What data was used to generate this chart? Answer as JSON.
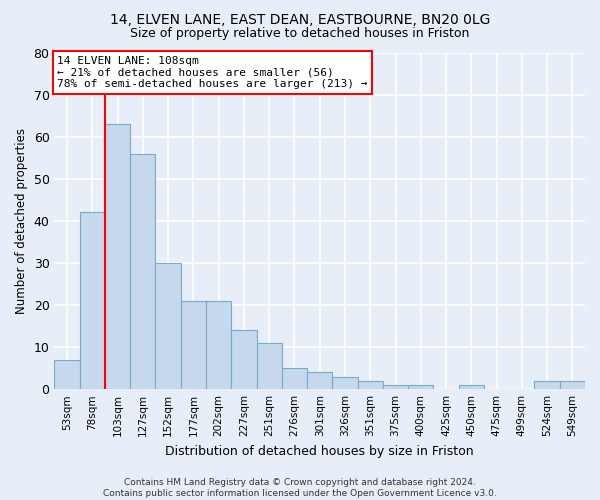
{
  "title_line1": "14, ELVEN LANE, EAST DEAN, EASTBOURNE, BN20 0LG",
  "title_line2": "Size of property relative to detached houses in Friston",
  "xlabel": "Distribution of detached houses by size in Friston",
  "ylabel": "Number of detached properties",
  "categories": [
    "53sqm",
    "78sqm",
    "103sqm",
    "127sqm",
    "152sqm",
    "177sqm",
    "202sqm",
    "227sqm",
    "251sqm",
    "276sqm",
    "301sqm",
    "326sqm",
    "351sqm",
    "375sqm",
    "400sqm",
    "425sqm",
    "450sqm",
    "475sqm",
    "499sqm",
    "524sqm",
    "549sqm"
  ],
  "values": [
    7,
    42,
    63,
    56,
    30,
    21,
    21,
    14,
    11,
    5,
    4,
    3,
    2,
    1,
    1,
    0,
    1,
    0,
    0,
    2,
    2
  ],
  "bar_color": "#c5d8ec",
  "bar_edge_color": "#7aaac9",
  "vline_index": 2,
  "vline_color": "red",
  "annotation_line1": "14 ELVEN LANE: 108sqm",
  "annotation_line2": "← 21% of detached houses are smaller (56)",
  "annotation_line3": "78% of semi-detached houses are larger (213) →",
  "ylim": [
    0,
    80
  ],
  "yticks": [
    0,
    10,
    20,
    30,
    40,
    50,
    60,
    70,
    80
  ],
  "footnote_line1": "Contains HM Land Registry data © Crown copyright and database right 2024.",
  "footnote_line2": "Contains public sector information licensed under the Open Government Licence v3.0.",
  "bg_color": "#e8eef7",
  "plot_bg_color": "#e8eef7"
}
